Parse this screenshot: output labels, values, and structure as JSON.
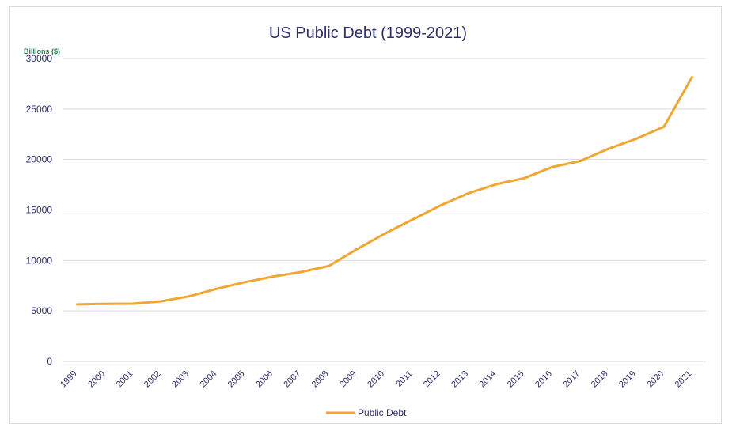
{
  "chart_data": {
    "type": "line",
    "title": "US Public Debt (1999-2021)",
    "ylabel": "Billions ($)",
    "xlabel": "",
    "x": [
      "1999",
      "2000",
      "2001",
      "2002",
      "2003",
      "2004",
      "2005",
      "2006",
      "2007",
      "2008",
      "2009",
      "2010",
      "2011",
      "2012",
      "2013",
      "2014",
      "2015",
      "2016",
      "2017",
      "2018",
      "2019",
      "2020",
      "2021"
    ],
    "ylim": [
      0,
      30000
    ],
    "yticks": [
      0,
      5000,
      10000,
      15000,
      20000,
      25000,
      30000
    ],
    "grid": true,
    "legend": "bottom",
    "series": [
      {
        "name": "Public Debt",
        "color": "#f0a630",
        "values": [
          5650,
          5700,
          5720,
          5950,
          6450,
          7200,
          7850,
          8400,
          8850,
          9450,
          11100,
          12650,
          14050,
          15450,
          16650,
          17550,
          18150,
          19250,
          19850,
          21050,
          22050,
          23250,
          28150
        ]
      }
    ]
  }
}
